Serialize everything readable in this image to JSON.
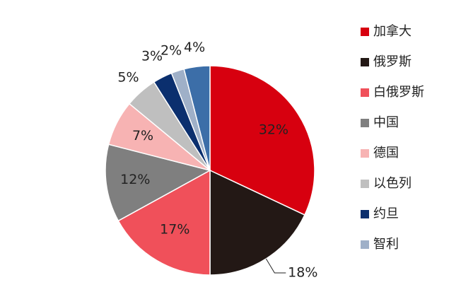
{
  "chart_data": {
    "type": "pie",
    "categories": [
      "加拿大",
      "俄罗斯",
      "白俄罗斯",
      "中国",
      "德国",
      "以色列",
      "约旦",
      "智利",
      null
    ],
    "values": [
      32,
      18,
      17,
      12,
      7,
      5,
      3,
      2,
      4
    ],
    "value_labels": [
      "32%",
      "18%",
      "17%",
      "12%",
      "7%",
      "5%",
      "3%",
      "2%",
      "4%"
    ],
    "colors": [
      "#d7000f",
      "#231815",
      "#f0505a",
      "#7f7f7f",
      "#f7b3b3",
      "#bfbfbf",
      "#0b2f6e",
      "#9fb0c8",
      "#3c6ea8"
    ]
  }
}
